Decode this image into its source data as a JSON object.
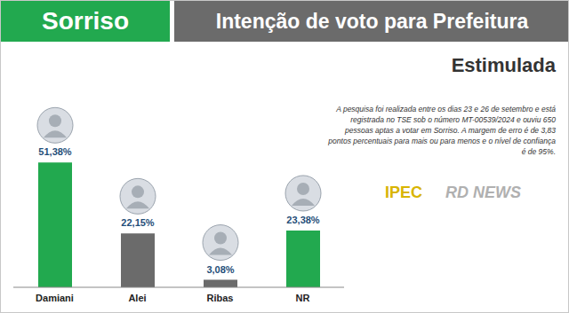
{
  "chart_data": {
    "type": "bar",
    "header": "Sorriso",
    "title": "Intenção de voto para Prefeitura",
    "subtitle": "Estimulada",
    "note": "A pesquisa foi realizada entre os dias 23 e 26 de setembro e está registrada no TSE sob o número MT-00539/2024 e ouviu 650 pessoas aptas a votar em Sorriso. A margem de erro é de 3,83 pontos percentuais para mais ou para menos e o nível de confiança é de 95%.",
    "sources": [
      "IPEC",
      "RD NEWS"
    ],
    "categories": [
      "Damiani",
      "Alei",
      "Ribas",
      "NR"
    ],
    "values": [
      51.38,
      22.15,
      3.08,
      23.38
    ],
    "value_labels": [
      "51,38%",
      "22,15%",
      "3,08%",
      "23,38%"
    ],
    "colors": [
      "#22a94f",
      "#6b6b6b",
      "#6b6b6b",
      "#22a94f"
    ],
    "ylim": [
      0,
      65
    ],
    "data_labels": true,
    "tick_labels": "x"
  }
}
